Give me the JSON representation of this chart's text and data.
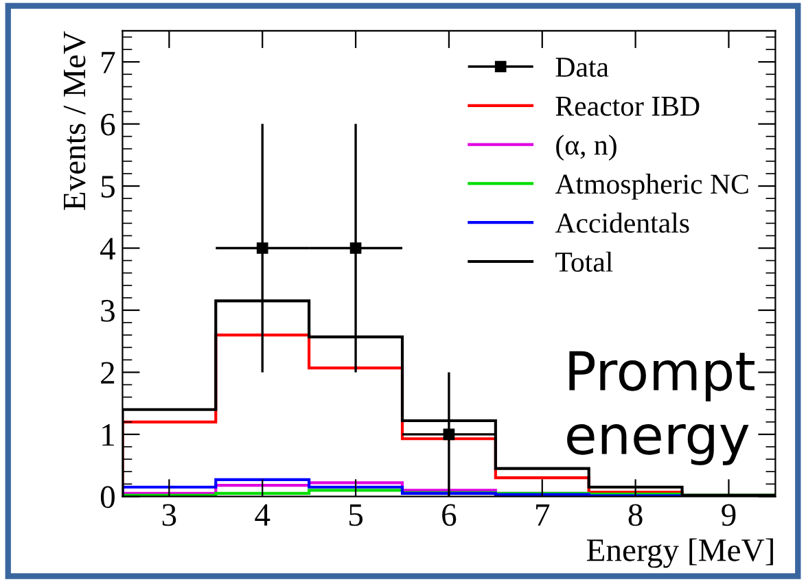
{
  "chart_data": {
    "type": "histogram",
    "xlabel": "Energy [MeV]",
    "ylabel": "Events / MeV",
    "bins": [
      2.5,
      3.5,
      4.5,
      5.5,
      6.5,
      7.5,
      8.5,
      9.5
    ],
    "series": [
      {
        "name": "Data",
        "type": "scatter",
        "color": "#000000",
        "x": [
          4,
          5,
          6
        ],
        "values": [
          4,
          4,
          1
        ],
        "errors": [
          2,
          2,
          1
        ],
        "xerrors": [
          0.5,
          0.5,
          0.5
        ],
        "marker": "square"
      },
      {
        "name": "Reactor IBD",
        "color": "#ff0000",
        "values": [
          1.2,
          2.6,
          2.07,
          0.93,
          0.3,
          0.07,
          0.01
        ]
      },
      {
        "name": "(α, n)",
        "color": "#e000e0",
        "values": [
          0.05,
          0.18,
          0.22,
          0.1,
          0.05,
          0.02,
          0.01
        ]
      },
      {
        "name": "Atmospheric NC",
        "color": "#00dd00",
        "values": [
          0.02,
          0.05,
          0.1,
          0.06,
          0.05,
          0.04,
          0.02
        ]
      },
      {
        "name": "Accidentals",
        "color": "#0000ff",
        "values": [
          0.15,
          0.27,
          0.15,
          0.05,
          0.03,
          0.01,
          0.01
        ]
      },
      {
        "name": "Total",
        "color": "#000000",
        "values": [
          1.4,
          3.15,
          2.57,
          1.22,
          0.45,
          0.15,
          0.02
        ]
      }
    ],
    "xlim": [
      2.5,
      9.5
    ],
    "ylim": [
      0,
      7.5
    ],
    "xticks": [
      3,
      4,
      5,
      6,
      7,
      8,
      9
    ],
    "yticks": [
      0,
      1,
      2,
      3,
      4,
      5,
      6,
      7
    ],
    "legend": "top right",
    "annotations": [
      "Prompt energy"
    ]
  }
}
